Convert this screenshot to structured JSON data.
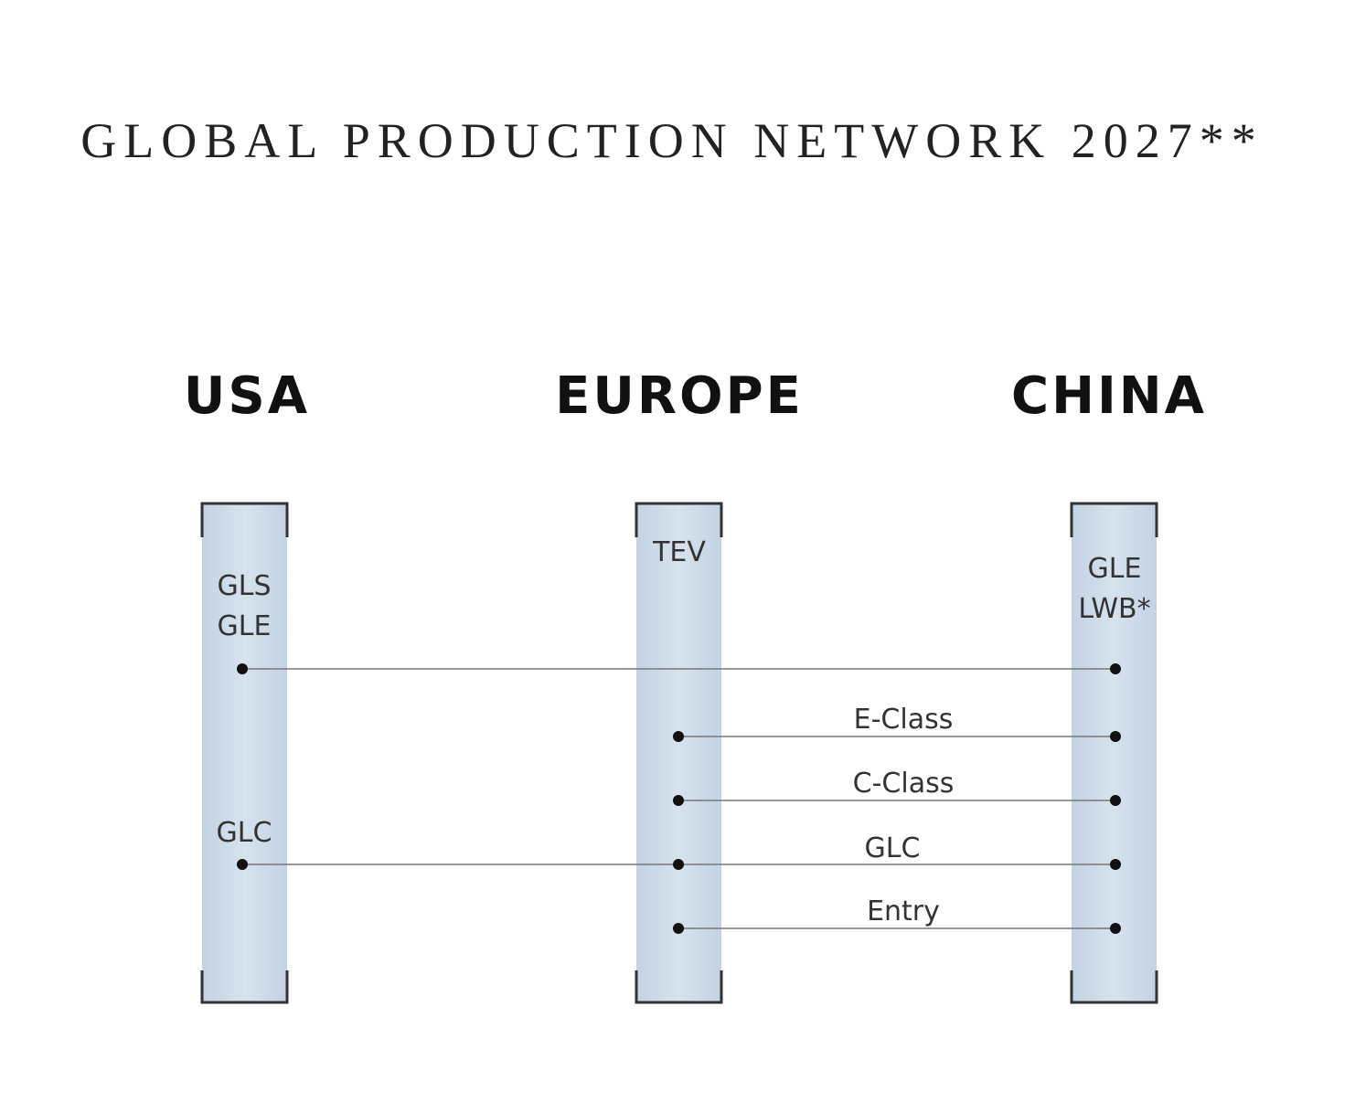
{
  "title": "GLOBAL PRODUCTION NETWORK 2027**",
  "columns": [
    {
      "name": "USA",
      "labels": [
        "GLS",
        "GLE",
        "GLC"
      ]
    },
    {
      "name": "EUROPE",
      "labels": [
        "TEV"
      ]
    },
    {
      "name": "CHINA",
      "labels": [
        "GLE",
        "LWB*"
      ]
    }
  ],
  "links": [
    "E-Class",
    "C-Class",
    "GLC",
    "Entry"
  ]
}
